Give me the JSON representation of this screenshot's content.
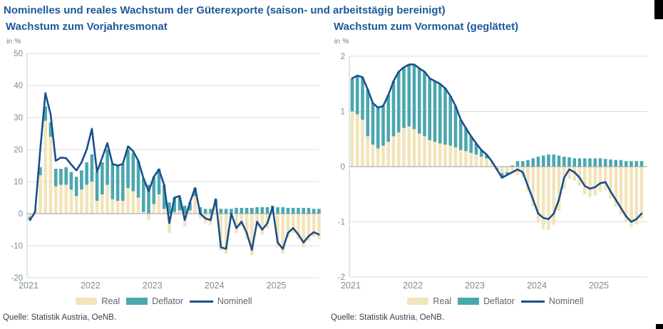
{
  "page": {
    "main_title": "Nominelles und reales Wachstum der Güterexporte (saison- und arbeitstägig bereinigt)",
    "source_left": "Quelle: Statistik Austria, OeNB.",
    "source_right": "Quelle: Statistik Austria, OeNB."
  },
  "legend": {
    "real": "Real",
    "deflator": "Deflator",
    "nominal": "Nominell"
  },
  "colors": {
    "title_blue": "#1d5a99",
    "real_bar": "#f2e4ba",
    "deflator_bar": "#4ba7ae",
    "nominal_line": "#1a4f8c",
    "axis_text": "#7f8c94",
    "grid": "#d9dde1",
    "zero_line": "#99a1a8",
    "axis_line": "#c7ccd1"
  },
  "chart_data": [
    {
      "type": "bar",
      "subtype": "stacked-bars-with-line",
      "title": "Wachstum zum Vorjahresmonat",
      "unit_label": "in %",
      "ylim": [
        -20,
        50
      ],
      "yticks": [
        50,
        40,
        30,
        20,
        10,
        0,
        -10,
        -20
      ],
      "x_tick_labels": [
        "2021",
        "2022",
        "2023",
        "2024",
        "2025"
      ],
      "months_start": "2021-01",
      "months_end": "2025-09",
      "series": [
        {
          "name": "Real",
          "type": "bar",
          "values": [
            -1,
            1,
            12,
            29,
            24,
            8.5,
            9,
            9,
            7.5,
            5.5,
            7.5,
            9,
            10,
            4,
            6,
            9,
            4.5,
            4,
            4,
            8,
            7,
            5,
            0.5,
            -2,
            3,
            6,
            1.5,
            -6,
            0.5,
            1,
            -4,
            1,
            5.5,
            -1.5,
            -3,
            -3.5,
            3,
            -11.5,
            -12.5,
            -1.5,
            -6,
            -4,
            -8,
            -13,
            -4,
            -6.5,
            -4.5,
            0.5,
            -10.5,
            -12.5,
            -7.5,
            -6,
            -8,
            -10.5,
            -8.5,
            -7.3,
            -8
          ]
        },
        {
          "name": "Deflator",
          "type": "bar",
          "values": [
            -1,
            0,
            2.5,
            4.5,
            4.5,
            5.5,
            5,
            5.5,
            5.5,
            6,
            6,
            7,
            8.5,
            9,
            10,
            11,
            11,
            11,
            11.5,
            12,
            12,
            11.5,
            10.5,
            9,
            8.5,
            8,
            7.5,
            3.5,
            4.5,
            4,
            2.5,
            2.5,
            2.5,
            2,
            1.5,
            1.5,
            1.5,
            1.5,
            1.5,
            1.5,
            1.8,
            1.8,
            1.8,
            1.8,
            2,
            2,
            2,
            2,
            2,
            2,
            1.8,
            1.8,
            1.8,
            1.8,
            1.8,
            1.5,
            1.5
          ]
        },
        {
          "name": "Nominell",
          "type": "line",
          "values": [
            -2,
            0.5,
            20,
            37.6,
            31,
            16.5,
            17.5,
            17.3,
            15.3,
            13.5,
            16,
            20,
            26.5,
            13,
            17.5,
            22,
            15.5,
            15,
            15.5,
            21,
            19.5,
            16.5,
            11,
            7,
            11.5,
            13.8,
            9,
            -3,
            5,
            5.5,
            -2,
            3.5,
            8,
            0,
            -1.5,
            -2,
            4.5,
            -10.5,
            -11,
            0,
            -4.5,
            -2.5,
            -6,
            -11.3,
            -2.5,
            -5,
            -3,
            2,
            -9,
            -11,
            -6,
            -4.5,
            -6.5,
            -9,
            -7,
            -5.8,
            -6.5
          ]
        }
      ]
    },
    {
      "type": "bar",
      "subtype": "stacked-bars-with-line",
      "title": "Wachstum zum Vormonat (geglättet)",
      "unit_label": "in %",
      "ylim": [
        -2,
        2
      ],
      "yticks": [
        2,
        1,
        0,
        -1,
        -2
      ],
      "x_tick_labels": [
        "2021",
        "2022",
        "2023",
        "2024",
        "2025"
      ],
      "months_start": "2021-01",
      "months_end": "2025-09",
      "series": [
        {
          "name": "Real",
          "type": "bar",
          "values": [
            1.0,
            0.95,
            0.85,
            0.55,
            0.4,
            0.33,
            0.38,
            0.45,
            0.55,
            0.62,
            0.7,
            0.73,
            0.68,
            0.6,
            0.55,
            0.48,
            0.45,
            0.42,
            0.4,
            0.38,
            0.35,
            0.3,
            0.28,
            0.25,
            0.22,
            0.18,
            0.15,
            0.1,
            -0.03,
            -0.12,
            -0.1,
            -0.12,
            -0.15,
            -0.2,
            -0.45,
            -0.72,
            -1.0,
            -1.13,
            -1.15,
            -1.05,
            -0.8,
            -0.4,
            -0.22,
            -0.25,
            -0.35,
            -0.5,
            -0.55,
            -0.52,
            -0.45,
            -0.42,
            -0.58,
            -0.72,
            -0.87,
            -1.0,
            -1.1,
            -1.05,
            -0.95
          ]
        },
        {
          "name": "Deflator",
          "type": "bar",
          "values": [
            0.6,
            0.7,
            0.77,
            0.85,
            0.75,
            0.74,
            0.72,
            0.85,
            1.0,
            1.1,
            1.1,
            1.12,
            1.17,
            1.18,
            1.17,
            1.12,
            1.1,
            1.08,
            1.02,
            0.9,
            0.75,
            0.55,
            0.42,
            0.3,
            0.2,
            0.12,
            0.07,
            0.0,
            -0.02,
            -0.08,
            -0.05,
            0.02,
            0.1,
            0.1,
            0.12,
            0.15,
            0.18,
            0.2,
            0.22,
            0.22,
            0.2,
            0.18,
            0.17,
            0.15,
            0.15,
            0.15,
            0.15,
            0.15,
            0.15,
            0.14,
            0.13,
            0.12,
            0.12,
            0.1,
            0.1,
            0.1,
            0.1
          ]
        },
        {
          "name": "Nominell",
          "type": "line",
          "values": [
            1.6,
            1.65,
            1.62,
            1.4,
            1.15,
            1.07,
            1.1,
            1.3,
            1.55,
            1.72,
            1.8,
            1.85,
            1.85,
            1.78,
            1.72,
            1.6,
            1.55,
            1.5,
            1.42,
            1.28,
            1.1,
            0.85,
            0.7,
            0.55,
            0.42,
            0.3,
            0.22,
            0.1,
            -0.05,
            -0.2,
            -0.15,
            -0.1,
            -0.05,
            -0.1,
            -0.35,
            -0.6,
            -0.85,
            -0.93,
            -0.95,
            -0.85,
            -0.6,
            -0.2,
            -0.05,
            -0.1,
            -0.2,
            -0.35,
            -0.4,
            -0.37,
            -0.3,
            -0.28,
            -0.45,
            -0.6,
            -0.75,
            -0.9,
            -1.0,
            -0.95,
            -0.85
          ]
        }
      ]
    }
  ]
}
